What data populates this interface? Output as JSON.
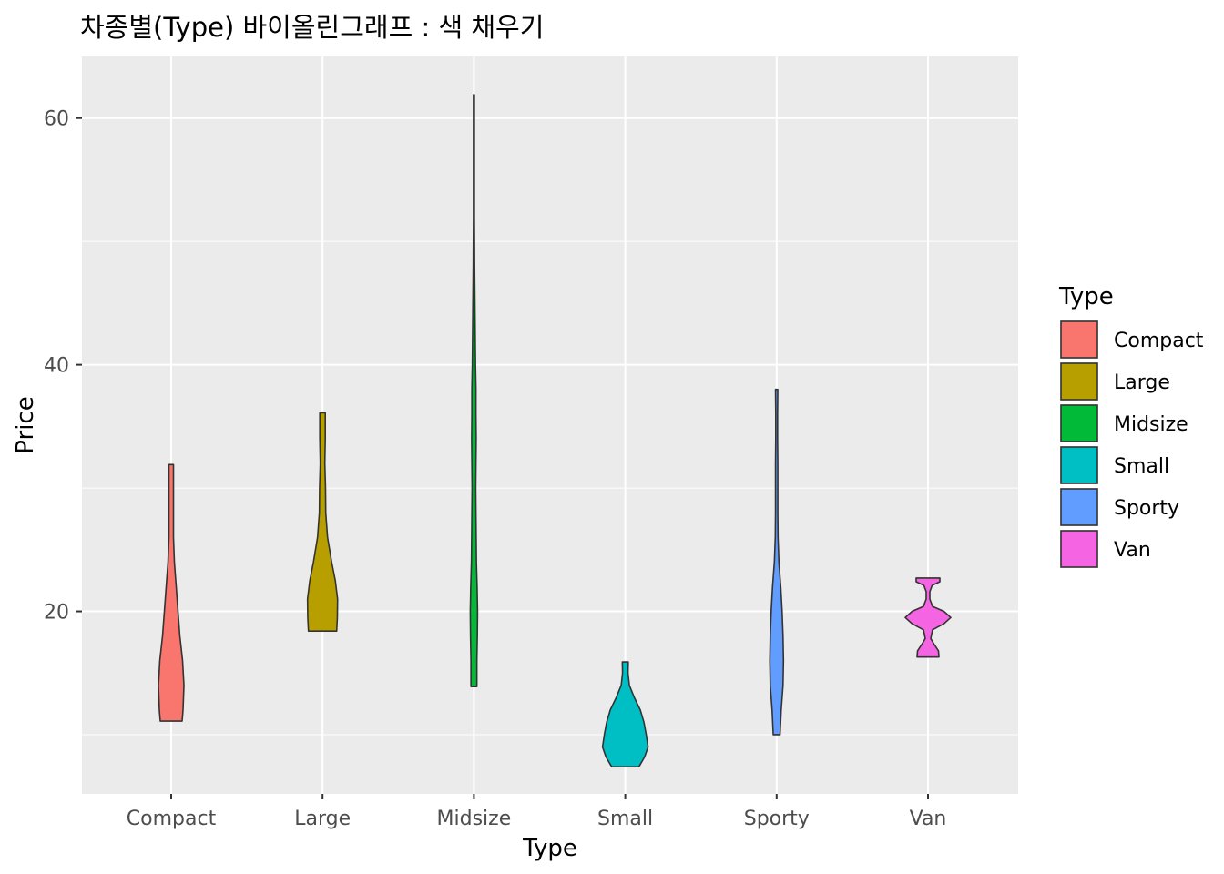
{
  "chart_data": {
    "type": "violin",
    "title": "차종별(Type) 바이올린그래프 : 색 채우기",
    "xlabel": "Type",
    "ylabel": "Price",
    "ylim": [
      5.2,
      65.0
    ],
    "yticks": [
      20,
      40,
      60
    ],
    "grid": true,
    "legend": {
      "title": "Type",
      "position": "right"
    },
    "categories": [
      "Compact",
      "Large",
      "Midsize",
      "Small",
      "Sporty",
      "Van"
    ],
    "colors": [
      "#F8766D",
      "#B79F00",
      "#00BA38",
      "#00BFC4",
      "#619CFF",
      "#F564E3"
    ],
    "series": [
      {
        "name": "Compact",
        "min": 11.1,
        "max": 31.9,
        "density": [
          [
            11.1,
            0.48
          ],
          [
            12.0,
            0.52
          ],
          [
            14.0,
            0.56
          ],
          [
            16.0,
            0.5
          ],
          [
            18.0,
            0.38
          ],
          [
            20.0,
            0.3
          ],
          [
            22.0,
            0.22
          ],
          [
            24.0,
            0.14
          ],
          [
            26.0,
            0.1
          ],
          [
            28.0,
            0.1
          ],
          [
            30.0,
            0.1
          ],
          [
            31.9,
            0.1
          ]
        ]
      },
      {
        "name": "Large",
        "min": 18.4,
        "max": 36.1,
        "density": [
          [
            18.4,
            0.62
          ],
          [
            19.5,
            0.65
          ],
          [
            21.0,
            0.66
          ],
          [
            22.5,
            0.56
          ],
          [
            24.0,
            0.4
          ],
          [
            26.0,
            0.22
          ],
          [
            28.0,
            0.14
          ],
          [
            30.0,
            0.13
          ],
          [
            32.0,
            0.1
          ],
          [
            34.0,
            0.12
          ],
          [
            36.1,
            0.12
          ]
        ]
      },
      {
        "name": "Midsize",
        "min": 13.9,
        "max": 61.9,
        "density": [
          [
            13.9,
            0.13
          ],
          [
            16.0,
            0.13
          ],
          [
            18.0,
            0.15
          ],
          [
            20.0,
            0.16
          ],
          [
            22.0,
            0.14
          ],
          [
            24.0,
            0.11
          ],
          [
            26.0,
            0.1
          ],
          [
            28.0,
            0.09
          ],
          [
            30.0,
            0.08
          ],
          [
            32.0,
            0.09
          ],
          [
            34.0,
            0.1
          ],
          [
            36.0,
            0.09
          ],
          [
            38.0,
            0.09
          ],
          [
            40.0,
            0.07
          ],
          [
            42.0,
            0.06
          ],
          [
            44.0,
            0.05
          ],
          [
            46.0,
            0.04
          ],
          [
            48.0,
            0.03
          ],
          [
            52.0,
            0.02
          ],
          [
            56.0,
            0.02
          ],
          [
            61.9,
            0.02
          ]
        ]
      },
      {
        "name": "Small",
        "min": 7.4,
        "max": 15.9,
        "density": [
          [
            7.4,
            0.6
          ],
          [
            8.2,
            0.85
          ],
          [
            9.0,
            1.0
          ],
          [
            10.0,
            0.92
          ],
          [
            11.0,
            0.82
          ],
          [
            12.0,
            0.66
          ],
          [
            13.0,
            0.4
          ],
          [
            14.0,
            0.18
          ],
          [
            15.0,
            0.12
          ],
          [
            15.9,
            0.13
          ]
        ]
      },
      {
        "name": "Sporty",
        "min": 10.0,
        "max": 38.0,
        "density": [
          [
            10.0,
            0.15
          ],
          [
            12.0,
            0.2
          ],
          [
            14.0,
            0.28
          ],
          [
            16.0,
            0.3
          ],
          [
            18.0,
            0.28
          ],
          [
            20.0,
            0.24
          ],
          [
            22.0,
            0.18
          ],
          [
            24.0,
            0.1
          ],
          [
            26.0,
            0.06
          ],
          [
            28.0,
            0.05
          ],
          [
            30.0,
            0.05
          ],
          [
            32.0,
            0.05
          ],
          [
            34.0,
            0.04
          ],
          [
            36.0,
            0.04
          ],
          [
            38.0,
            0.05
          ]
        ]
      },
      {
        "name": "Van",
        "min": 16.3,
        "max": 22.7,
        "density": [
          [
            16.3,
            0.48
          ],
          [
            16.8,
            0.46
          ],
          [
            17.3,
            0.28
          ],
          [
            17.8,
            0.12
          ],
          [
            18.5,
            0.2
          ],
          [
            19.0,
            0.7
          ],
          [
            19.5,
            1.0
          ],
          [
            20.0,
            0.7
          ],
          [
            20.4,
            0.2
          ],
          [
            21.0,
            0.08
          ],
          [
            21.6,
            0.08
          ],
          [
            22.1,
            0.18
          ],
          [
            22.4,
            0.52
          ],
          [
            22.7,
            0.52
          ]
        ]
      }
    ]
  }
}
